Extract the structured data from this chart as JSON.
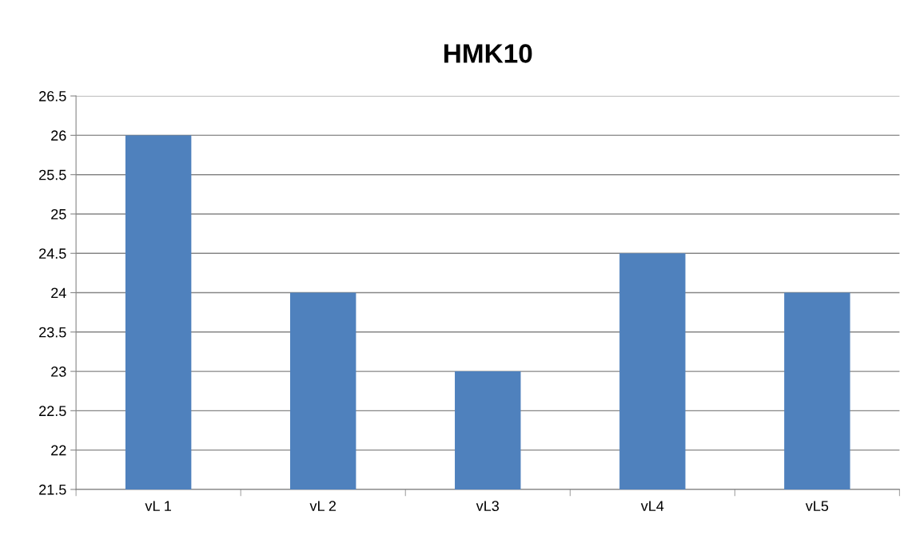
{
  "chart_data": {
    "type": "bar",
    "title": "HMK10",
    "categories": [
      "vL 1",
      "vL 2",
      "vL3",
      "vL4",
      "vL5"
    ],
    "series": [
      {
        "color": "#4f81bd",
        "values": [
          26,
          24,
          23,
          24.5,
          24
        ]
      }
    ],
    "ylim": [
      21.5,
      26.5
    ],
    "yticks": [
      21.5,
      22,
      22.5,
      23,
      23.5,
      24,
      24.5,
      25,
      25.5,
      26,
      26.5
    ],
    "grid": "y",
    "legend": false
  }
}
